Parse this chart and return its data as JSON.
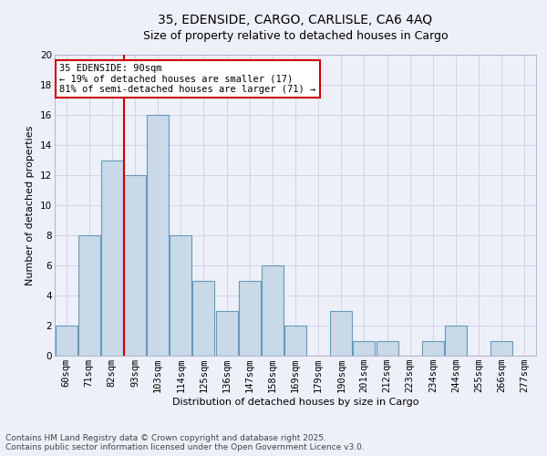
{
  "title_line1": "35, EDENSIDE, CARGO, CARLISLE, CA6 4AQ",
  "title_line2": "Size of property relative to detached houses in Cargo",
  "xlabel": "Distribution of detached houses by size in Cargo",
  "ylabel": "Number of detached properties",
  "categories": [
    "60sqm",
    "71sqm",
    "82sqm",
    "93sqm",
    "103sqm",
    "114sqm",
    "125sqm",
    "136sqm",
    "147sqm",
    "158sqm",
    "169sqm",
    "179sqm",
    "190sqm",
    "201sqm",
    "212sqm",
    "223sqm",
    "234sqm",
    "244sqm",
    "255sqm",
    "266sqm",
    "277sqm"
  ],
  "values": [
    2,
    8,
    13,
    12,
    16,
    8,
    5,
    3,
    5,
    6,
    2,
    0,
    3,
    1,
    1,
    0,
    1,
    2,
    0,
    1,
    0
  ],
  "bar_color": "#c9d9e8",
  "bar_edge_color": "#6699bb",
  "bar_edge_width": 0.8,
  "grid_color": "#d0d4e8",
  "background_color": "#edf0f8",
  "red_line_index": 3,
  "red_line_color": "#cc0000",
  "annotation_title": "35 EDENSIDE: 90sqm",
  "annotation_line1": "← 19% of detached houses are smaller (17)",
  "annotation_line2": "81% of semi-detached houses are larger (71) →",
  "annotation_box_facecolor": "#ffffff",
  "annotation_box_edgecolor": "#cc0000",
  "ylim": [
    0,
    20
  ],
  "yticks": [
    0,
    2,
    4,
    6,
    8,
    10,
    12,
    14,
    16,
    18,
    20
  ],
  "title_fontsize": 10,
  "subtitle_fontsize": 9,
  "axis_label_fontsize": 8,
  "tick_fontsize": 7.5,
  "annotation_fontsize": 7.5,
  "footer_fontsize": 6.5,
  "footer_line1": "Contains HM Land Registry data © Crown copyright and database right 2025.",
  "footer_line2": "Contains public sector information licensed under the Open Government Licence v3.0."
}
